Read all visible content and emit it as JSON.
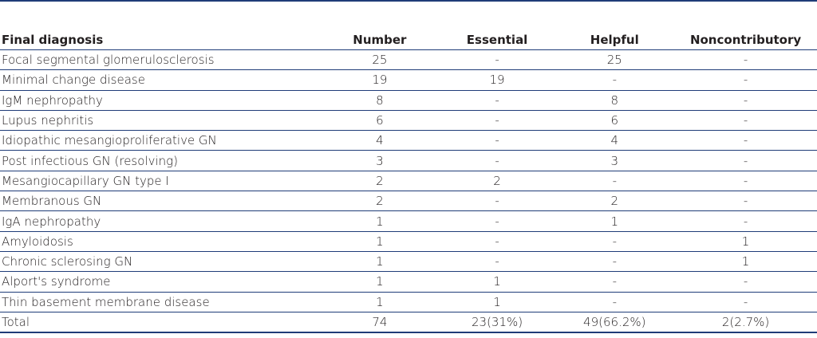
{
  "table": {
    "headers": [
      "Final diagnosis",
      "Number",
      "Essential",
      "Helpful",
      "Noncontributory"
    ],
    "rows": [
      [
        "Focal segmental glomerulosclerosis",
        "25",
        "-",
        "25",
        "-"
      ],
      [
        "Minimal change disease",
        "19",
        "19",
        "-",
        "-"
      ],
      [
        "IgM nephropathy",
        "8",
        "-",
        "8",
        "-"
      ],
      [
        "Lupus nephritis",
        "6",
        "-",
        "6",
        "-"
      ],
      [
        "Idiopathic mesangioproliferative GN",
        "4",
        "-",
        "4",
        "-"
      ],
      [
        "Post infectious GN (resolving)",
        "3",
        "-",
        "3",
        "-"
      ],
      [
        "Mesangiocapillary GN type I",
        "2",
        "2",
        "-",
        "-"
      ],
      [
        "Membranous GN",
        "2",
        "-",
        "2",
        "-"
      ],
      [
        "IgA nephropathy",
        "1",
        "-",
        "1",
        "-"
      ],
      [
        "Amyloidosis",
        "1",
        "-",
        "-",
        "1"
      ],
      [
        "Chronic sclerosing GN",
        "1",
        "-",
        "-",
        "1"
      ],
      [
        "Alport's syndrome",
        "1",
        "1",
        "-",
        "-"
      ],
      [
        "Thin basement membrane disease",
        "1",
        "1",
        "-",
        "-"
      ]
    ],
    "total": [
      "Total",
      "74",
      "23(31%)",
      "49(66.2%)",
      "2(2.7%)"
    ]
  },
  "colors": {
    "rule": "#1f3c78",
    "text": "#231f20"
  }
}
